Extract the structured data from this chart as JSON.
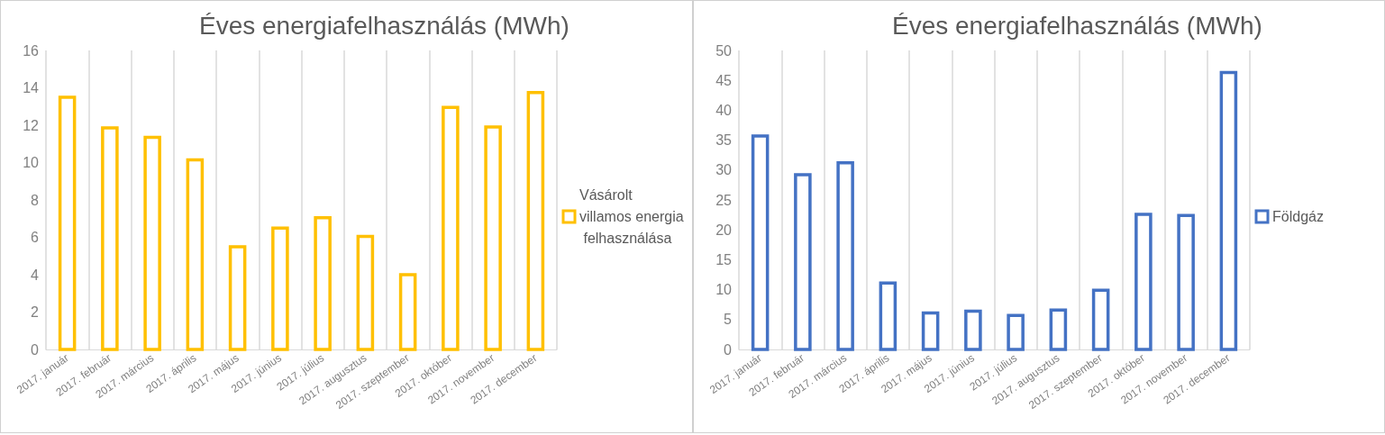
{
  "chart_data": [
    {
      "type": "bar",
      "title": "Éves energiafelhasználás (MWh)",
      "categories": [
        "2017. január",
        "2017. február",
        "2017. március",
        "2017. április",
        "2017. május",
        "2017. június",
        "2017. július",
        "2017. augusztus",
        "2017. szeptember",
        "2017. október",
        "2017. november",
        "2017. december"
      ],
      "series": [
        {
          "name": "Vásárolt villamos energia felhasználása",
          "color": "#ffc000",
          "values": [
            13.5,
            11.85,
            11.35,
            10.15,
            5.5,
            6.5,
            7.05,
            6.05,
            4.0,
            12.95,
            11.9,
            13.75
          ]
        }
      ],
      "ylim": [
        0,
        16
      ],
      "yticks": [
        0,
        2,
        4,
        6,
        8,
        10,
        12,
        14,
        16
      ],
      "grid": "x",
      "legend": "right"
    },
    {
      "type": "bar",
      "title": "Éves energiafelhasználás (MWh)",
      "categories": [
        "2017. január",
        "2017. február",
        "2017. március",
        "2017. április",
        "2017. május",
        "2017. június",
        "2017. július",
        "2017. augusztus",
        "2017. szeptember",
        "2017. október",
        "2017. november",
        "2017. december"
      ],
      "series": [
        {
          "name": "Földgáz",
          "color": "#4472c4",
          "values": [
            35.7,
            29.2,
            31.2,
            11.1,
            6.1,
            6.4,
            5.7,
            6.6,
            9.9,
            22.6,
            22.4,
            46.3
          ]
        }
      ],
      "ylim": [
        0,
        50
      ],
      "yticks": [
        0,
        5,
        10,
        15,
        20,
        25,
        30,
        35,
        40,
        45,
        50
      ],
      "grid": "x",
      "legend": "right"
    }
  ]
}
